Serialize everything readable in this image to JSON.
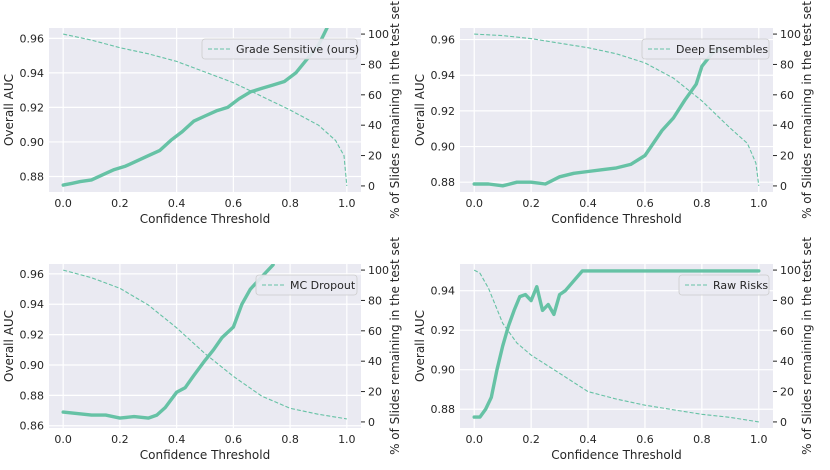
{
  "colors": {
    "series": "#66c2a5",
    "background": "#eaeaf2",
    "grid": "#ffffff",
    "text": "#262626"
  },
  "chart_data": [
    {
      "type": "line",
      "id": "grade-sensitive",
      "xlabel": "Confidence Threshold",
      "ylabel": "Overall AUC",
      "y2label": "% of Slides remaining in the test set",
      "legend_label": "Grade Sensitive (ours)",
      "legend_position": "top-right",
      "xlim": [
        -0.05,
        1.05
      ],
      "ylim": [
        0.871,
        0.966
      ],
      "y2lim": [
        -4,
        104
      ],
      "xticks": [
        0.0,
        0.2,
        0.4,
        0.6,
        0.8,
        1.0
      ],
      "xtick_labels": [
        "0.0",
        "0.2",
        "0.4",
        "0.6",
        "0.8",
        "1.0"
      ],
      "yticks": [
        0.88,
        0.9,
        0.92,
        0.94,
        0.96
      ],
      "ytick_labels": [
        "0.88",
        "0.90",
        "0.92",
        "0.94",
        "0.96"
      ],
      "y2ticks": [
        0,
        20,
        40,
        60,
        80,
        100
      ],
      "y2tick_labels": [
        "0",
        "20",
        "40",
        "60",
        "80",
        "100"
      ],
      "auc": {
        "x": [
          0.0,
          0.03,
          0.06,
          0.1,
          0.14,
          0.18,
          0.22,
          0.26,
          0.3,
          0.34,
          0.38,
          0.42,
          0.46,
          0.5,
          0.54,
          0.58,
          0.62,
          0.66,
          0.7,
          0.74,
          0.78,
          0.82,
          0.86,
          0.9,
          0.93
        ],
        "y": [
          0.875,
          0.876,
          0.877,
          0.878,
          0.881,
          0.884,
          0.886,
          0.889,
          0.892,
          0.895,
          0.901,
          0.906,
          0.912,
          0.915,
          0.918,
          0.92,
          0.925,
          0.929,
          0.931,
          0.933,
          0.935,
          0.94,
          0.948,
          0.956,
          0.966
        ]
      },
      "remaining": {
        "x": [
          0.0,
          0.1,
          0.2,
          0.3,
          0.4,
          0.5,
          0.6,
          0.7,
          0.8,
          0.9,
          0.96,
          0.99,
          1.0
        ],
        "y": [
          100,
          96,
          91,
          87,
          82,
          75,
          68,
          59,
          50,
          40,
          30,
          20,
          0
        ]
      }
    },
    {
      "type": "line",
      "id": "deep-ensembles",
      "xlabel": "Confidence Threshold",
      "ylabel": "Overall AUC",
      "y2label": "% of Slides remaining in the test set",
      "legend_label": "Deep Ensembles",
      "legend_position": "top-right",
      "xlim": [
        -0.05,
        1.05
      ],
      "ylim": [
        0.8745,
        0.9665
      ],
      "y2lim": [
        -4,
        104
      ],
      "xticks": [
        0.0,
        0.2,
        0.4,
        0.6,
        0.8,
        1.0
      ],
      "xtick_labels": [
        "0.0",
        "0.2",
        "0.4",
        "0.6",
        "0.8",
        "1.0"
      ],
      "yticks": [
        0.88,
        0.9,
        0.92,
        0.94,
        0.96
      ],
      "ytick_labels": [
        "0.88",
        "0.90",
        "0.92",
        "0.94",
        "0.96"
      ],
      "y2ticks": [
        0,
        20,
        40,
        60,
        80,
        100
      ],
      "y2tick_labels": [
        "0",
        "20",
        "40",
        "60",
        "80",
        "100"
      ],
      "auc": {
        "x": [
          0.0,
          0.05,
          0.1,
          0.15,
          0.2,
          0.25,
          0.3,
          0.35,
          0.4,
          0.45,
          0.5,
          0.55,
          0.6,
          0.63,
          0.66,
          0.7,
          0.74,
          0.78,
          0.8,
          0.84,
          0.87
        ],
        "y": [
          0.879,
          0.879,
          0.878,
          0.88,
          0.88,
          0.879,
          0.883,
          0.885,
          0.886,
          0.887,
          0.888,
          0.89,
          0.895,
          0.902,
          0.909,
          0.916,
          0.926,
          0.935,
          0.945,
          0.953,
          0.955
        ]
      },
      "remaining": {
        "x": [
          0.0,
          0.1,
          0.2,
          0.3,
          0.4,
          0.5,
          0.6,
          0.7,
          0.8,
          0.9,
          0.96,
          0.99,
          1.0
        ],
        "y": [
          100,
          99,
          97,
          94,
          91,
          87,
          81,
          71,
          56,
          38,
          28,
          15,
          0
        ]
      }
    },
    {
      "type": "line",
      "id": "mc-dropout",
      "xlabel": "Confidence Threshold",
      "ylabel": "Overall AUC",
      "y2label": "% of Slides remaining in the test set",
      "legend_label": "MC Dropout",
      "legend_position": "top-right",
      "xlim": [
        -0.05,
        1.05
      ],
      "ylim": [
        0.8585,
        0.9665
      ],
      "y2lim": [
        -4,
        104
      ],
      "xticks": [
        0.0,
        0.2,
        0.4,
        0.6,
        0.8,
        1.0
      ],
      "xtick_labels": [
        "0.0",
        "0.2",
        "0.4",
        "0.6",
        "0.8",
        "1.0"
      ],
      "yticks": [
        0.86,
        0.88,
        0.9,
        0.92,
        0.94,
        0.96
      ],
      "ytick_labels": [
        "0.86",
        "0.88",
        "0.90",
        "0.92",
        "0.94",
        "0.96"
      ],
      "y2ticks": [
        0,
        20,
        40,
        60,
        80,
        100
      ],
      "y2tick_labels": [
        "0",
        "20",
        "40",
        "60",
        "80",
        "100"
      ],
      "auc": {
        "x": [
          0.0,
          0.05,
          0.1,
          0.15,
          0.2,
          0.25,
          0.3,
          0.33,
          0.36,
          0.4,
          0.43,
          0.46,
          0.5,
          0.53,
          0.56,
          0.6,
          0.63,
          0.66,
          0.7,
          0.74
        ],
        "y": [
          0.869,
          0.868,
          0.867,
          0.867,
          0.865,
          0.866,
          0.865,
          0.867,
          0.872,
          0.882,
          0.885,
          0.893,
          0.903,
          0.91,
          0.918,
          0.925,
          0.94,
          0.95,
          0.958,
          0.966
        ]
      },
      "remaining": {
        "x": [
          0.0,
          0.1,
          0.2,
          0.3,
          0.4,
          0.5,
          0.6,
          0.7,
          0.8,
          0.9,
          1.0
        ],
        "y": [
          100,
          95,
          88,
          77,
          62,
          45,
          30,
          17,
          9,
          5,
          2
        ]
      }
    },
    {
      "type": "line",
      "id": "raw-risks",
      "xlabel": "Confidence Threshold",
      "ylabel": "Overall AUC",
      "y2label": "% of Slides remaining in the test set",
      "legend_label": "Raw Risks",
      "legend_position": "top-right",
      "xlim": [
        -0.05,
        1.05
      ],
      "ylim": [
        0.8705,
        0.9535
      ],
      "y2lim": [
        -4,
        104
      ],
      "xticks": [
        0.0,
        0.2,
        0.4,
        0.6,
        0.8,
        1.0
      ],
      "xtick_labels": [
        "0.0",
        "0.2",
        "0.4",
        "0.6",
        "0.8",
        "1.0"
      ],
      "yticks": [
        0.88,
        0.9,
        0.92,
        0.94
      ],
      "ytick_labels": [
        "0.88",
        "0.90",
        "0.92",
        "0.94"
      ],
      "y2ticks": [
        0,
        20,
        40,
        60,
        80,
        100
      ],
      "y2tick_labels": [
        "0",
        "20",
        "40",
        "60",
        "80",
        "100"
      ],
      "auc": {
        "x": [
          0.0,
          0.02,
          0.04,
          0.06,
          0.08,
          0.1,
          0.12,
          0.14,
          0.16,
          0.18,
          0.2,
          0.22,
          0.24,
          0.26,
          0.28,
          0.3,
          0.32,
          0.35,
          0.38,
          1.0
        ],
        "y": [
          0.876,
          0.876,
          0.88,
          0.886,
          0.9,
          0.912,
          0.922,
          0.93,
          0.937,
          0.938,
          0.935,
          0.942,
          0.93,
          0.933,
          0.928,
          0.938,
          0.94,
          0.945,
          0.95,
          0.95
        ]
      },
      "remaining": {
        "x": [
          0.0,
          0.02,
          0.05,
          0.1,
          0.15,
          0.2,
          0.3,
          0.4,
          0.5,
          0.6,
          0.7,
          0.8,
          0.9,
          1.0
        ],
        "y": [
          100,
          98,
          88,
          65,
          52,
          44,
          32,
          20,
          15,
          11,
          8,
          5,
          3,
          0
        ]
      }
    }
  ]
}
